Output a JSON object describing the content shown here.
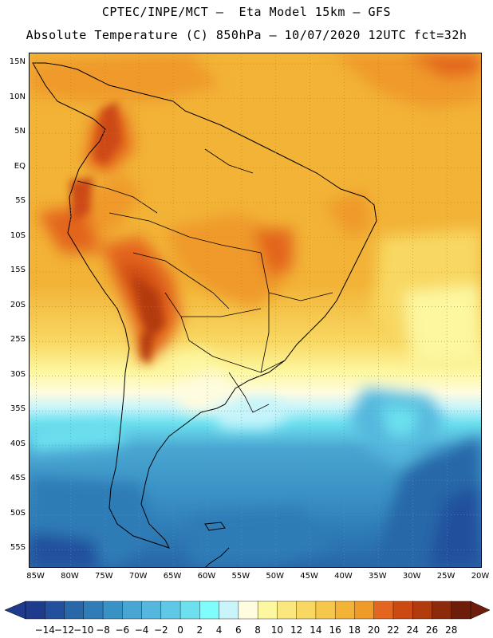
{
  "title_line1": "CPTEC/INPE/MCT –  Eta Model 15km – GFS",
  "title_line2": "Absolute Temperature (C) 850hPa – 10/07/2020 12UTC fct=32h",
  "map": {
    "lat_labels": [
      "15N",
      "10N",
      "5N",
      "EQ",
      "5S",
      "10S",
      "15S",
      "20S",
      "25S",
      "30S",
      "35S",
      "40S",
      "45S",
      "50S",
      "55S"
    ],
    "lon_labels": [
      "85W",
      "80W",
      "75W",
      "70W",
      "65W",
      "60W",
      "55W",
      "50W",
      "45W",
      "40W",
      "35W",
      "30W",
      "25W",
      "20W"
    ],
    "lat_range": [
      -57.5,
      16.5
    ],
    "lon_range": [
      -86.0,
      -20.0
    ],
    "grid": "dotted"
  },
  "colorbar": {
    "labels": [
      "−14",
      "−12",
      "−10",
      "−8",
      "−6",
      "−4",
      "−2",
      "0",
      "2",
      "4",
      "6",
      "8",
      "10",
      "12",
      "14",
      "16",
      "18",
      "20",
      "22",
      "24",
      "26",
      "28"
    ],
    "colors": [
      "#1f3c8c",
      "#23509c",
      "#2867a8",
      "#2f7cb6",
      "#3a91c4",
      "#49a5d1",
      "#55b7dd",
      "#5fc8e6",
      "#6ce0ef",
      "#7ffcfc",
      "#c8f4fa",
      "#fffce0",
      "#fdf7a0",
      "#fbe77e",
      "#f8d862",
      "#f5c84c",
      "#f2b337",
      "#ef9a29",
      "#e3651f",
      "#cc4a12",
      "#b23b0e",
      "#8c2a0c",
      "#6e1d0a"
    ],
    "low_color": "#1f3c8c",
    "high_color": "#6e1d0a"
  }
}
